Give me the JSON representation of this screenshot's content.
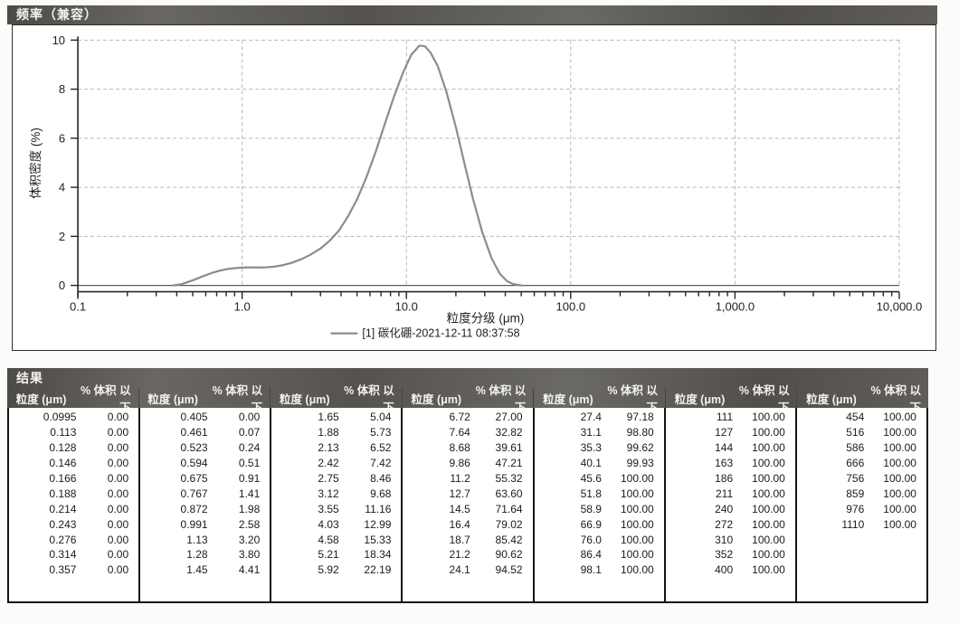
{
  "chart_panel": {
    "title": "频率（兼容）"
  },
  "chart_data": {
    "type": "line",
    "title": "频率（兼容）",
    "xlabel": "粒度分级 (μm)",
    "ylabel": "体积密度 (%)",
    "x_scale": "log",
    "xlim": [
      0.1,
      10000
    ],
    "ylim": [
      0,
      10
    ],
    "x_tick_values": [
      0.1,
      1,
      10,
      100,
      1000,
      10000
    ],
    "x_tick_labels": [
      "0.1",
      "1.0",
      "10.0",
      "100.0",
      "1,000.0",
      "10,000.0"
    ],
    "y_ticks": [
      0,
      2,
      4,
      6,
      8,
      10
    ],
    "grid": "dashed horizontal at y ticks, dashed vertical at decades",
    "legend": {
      "position": "bottom-center",
      "entries": [
        "[1] 碳化硼-2021-12-11 08:37:58"
      ]
    },
    "series": [
      {
        "name": "[1] 碳化硼-2021-12-11 08:37:58",
        "color": "#8c8c8a",
        "points": [
          [
            0.38,
            0.0
          ],
          [
            0.42,
            0.04
          ],
          [
            0.46,
            0.12
          ],
          [
            0.52,
            0.25
          ],
          [
            0.58,
            0.38
          ],
          [
            0.65,
            0.5
          ],
          [
            0.73,
            0.6
          ],
          [
            0.82,
            0.67
          ],
          [
            0.92,
            0.71
          ],
          [
            1.05,
            0.73
          ],
          [
            1.2,
            0.73
          ],
          [
            1.35,
            0.73
          ],
          [
            1.55,
            0.76
          ],
          [
            1.75,
            0.82
          ],
          [
            2.0,
            0.92
          ],
          [
            2.3,
            1.07
          ],
          [
            2.6,
            1.25
          ],
          [
            3.0,
            1.5
          ],
          [
            3.4,
            1.81
          ],
          [
            3.9,
            2.25
          ],
          [
            4.4,
            2.8
          ],
          [
            5.0,
            3.5
          ],
          [
            5.7,
            4.4
          ],
          [
            6.5,
            5.45
          ],
          [
            7.4,
            6.6
          ],
          [
            8.4,
            7.7
          ],
          [
            9.5,
            8.65
          ],
          [
            10.7,
            9.4
          ],
          [
            12.0,
            9.78
          ],
          [
            13.0,
            9.74
          ],
          [
            14.0,
            9.5
          ],
          [
            15.5,
            8.95
          ],
          [
            17.5,
            7.9
          ],
          [
            20.0,
            6.45
          ],
          [
            22.5,
            5.0
          ],
          [
            25.5,
            3.5
          ],
          [
            29.0,
            2.15
          ],
          [
            33.0,
            1.1
          ],
          [
            37.0,
            0.48
          ],
          [
            41.0,
            0.17
          ],
          [
            45.0,
            0.05
          ],
          [
            50.0,
            0.0
          ]
        ]
      }
    ]
  },
  "results": {
    "title": "结果",
    "col_header_size": "粒度 (μm)",
    "col_header_pct": "% 体积 以下",
    "columns": [
      [
        [
          "0.0995",
          "0.00"
        ],
        [
          "0.113",
          "0.00"
        ],
        [
          "0.128",
          "0.00"
        ],
        [
          "0.146",
          "0.00"
        ],
        [
          "0.166",
          "0.00"
        ],
        [
          "0.188",
          "0.00"
        ],
        [
          "0.214",
          "0.00"
        ],
        [
          "0.243",
          "0.00"
        ],
        [
          "0.276",
          "0.00"
        ],
        [
          "0.314",
          "0.00"
        ],
        [
          "0.357",
          "0.00"
        ]
      ],
      [
        [
          "0.405",
          "0.00"
        ],
        [
          "0.461",
          "0.07"
        ],
        [
          "0.523",
          "0.24"
        ],
        [
          "0.594",
          "0.51"
        ],
        [
          "0.675",
          "0.91"
        ],
        [
          "0.767",
          "1.41"
        ],
        [
          "0.872",
          "1.98"
        ],
        [
          "0.991",
          "2.58"
        ],
        [
          "1.13",
          "3.20"
        ],
        [
          "1.28",
          "3.80"
        ],
        [
          "1.45",
          "4.41"
        ]
      ],
      [
        [
          "1.65",
          "5.04"
        ],
        [
          "1.88",
          "5.73"
        ],
        [
          "2.13",
          "6.52"
        ],
        [
          "2.42",
          "7.42"
        ],
        [
          "2.75",
          "8.46"
        ],
        [
          "3.12",
          "9.68"
        ],
        [
          "3.55",
          "11.16"
        ],
        [
          "4.03",
          "12.99"
        ],
        [
          "4.58",
          "15.33"
        ],
        [
          "5.21",
          "18.34"
        ],
        [
          "5.92",
          "22.19"
        ]
      ],
      [
        [
          "6.72",
          "27.00"
        ],
        [
          "7.64",
          "32.82"
        ],
        [
          "8.68",
          "39.61"
        ],
        [
          "9.86",
          "47.21"
        ],
        [
          "11.2",
          "55.32"
        ],
        [
          "12.7",
          "63.60"
        ],
        [
          "14.5",
          "71.64"
        ],
        [
          "16.4",
          "79.02"
        ],
        [
          "18.7",
          "85.42"
        ],
        [
          "21.2",
          "90.62"
        ],
        [
          "24.1",
          "94.52"
        ]
      ],
      [
        [
          "27.4",
          "97.18"
        ],
        [
          "31.1",
          "98.80"
        ],
        [
          "35.3",
          "99.62"
        ],
        [
          "40.1",
          "99.93"
        ],
        [
          "45.6",
          "100.00"
        ],
        [
          "51.8",
          "100.00"
        ],
        [
          "58.9",
          "100.00"
        ],
        [
          "66.9",
          "100.00"
        ],
        [
          "76.0",
          "100.00"
        ],
        [
          "86.4",
          "100.00"
        ],
        [
          "98.1",
          "100.00"
        ]
      ],
      [
        [
          "111",
          "100.00"
        ],
        [
          "127",
          "100.00"
        ],
        [
          "144",
          "100.00"
        ],
        [
          "163",
          "100.00"
        ],
        [
          "186",
          "100.00"
        ],
        [
          "211",
          "100.00"
        ],
        [
          "240",
          "100.00"
        ],
        [
          "272",
          "100.00"
        ],
        [
          "310",
          "100.00"
        ],
        [
          "352",
          "100.00"
        ],
        [
          "400",
          "100.00"
        ]
      ],
      [
        [
          "454",
          "100.00"
        ],
        [
          "516",
          "100.00"
        ],
        [
          "586",
          "100.00"
        ],
        [
          "666",
          "100.00"
        ],
        [
          "756",
          "100.00"
        ],
        [
          "859",
          "100.00"
        ],
        [
          "976",
          "100.00"
        ],
        [
          "1110",
          "100.00"
        ]
      ]
    ]
  },
  "colors": {
    "header_bar": "#58554f",
    "curve": "#8c8c8a",
    "grid": "#b7b6b3",
    "border": "#141414"
  }
}
